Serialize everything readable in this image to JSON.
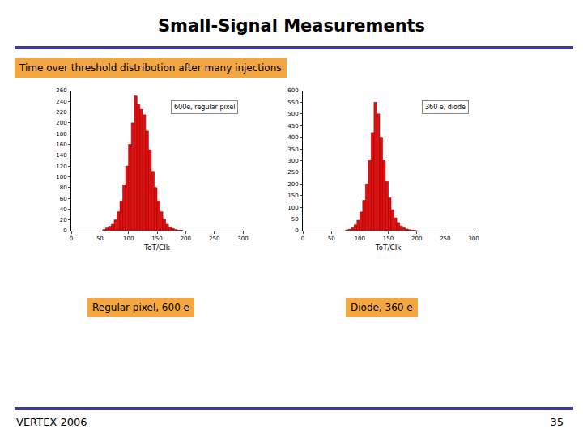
{
  "slide": {
    "title": "Small-Signal Measurements",
    "heading_box": "Time over threshold distribution after many injections",
    "captions": [
      "Regular pixel, 600 e",
      "Diode, 360 e"
    ],
    "footer": "VERTEX 2006",
    "page": "35"
  },
  "chart_data": [
    {
      "type": "histogram",
      "x_label": "ToT/Clk",
      "bins": [
        55,
        60,
        65,
        70,
        75,
        80,
        85,
        90,
        95,
        100,
        105,
        110,
        115,
        120,
        125,
        130,
        135,
        140,
        145,
        150,
        155,
        160,
        165,
        170,
        175,
        180,
        185,
        190,
        195
      ],
      "series": [
        {
          "name": "600e, regular pixel",
          "color": "#e41010",
          "values": [
            2,
            5,
            8,
            12,
            20,
            35,
            55,
            85,
            120,
            160,
            200,
            250,
            235,
            225,
            215,
            185,
            150,
            110,
            80,
            55,
            35,
            22,
            12,
            7,
            4,
            2,
            1,
            1
          ]
        }
      ],
      "xlim": [
        0,
        300
      ],
      "xticks": [
        0,
        50,
        100,
        150,
        200,
        250,
        300
      ],
      "ylim": [
        0,
        260
      ],
      "yticks": [
        0,
        20,
        40,
        60,
        80,
        100,
        120,
        140,
        160,
        180,
        200,
        220,
        240,
        260
      ],
      "grid": false
    },
    {
      "type": "histogram",
      "x_label": "ToT/Clk",
      "bins": [
        75,
        80,
        85,
        90,
        95,
        100,
        105,
        110,
        115,
        120,
        125,
        130,
        135,
        140,
        145,
        150,
        155,
        160,
        165,
        170,
        175,
        180,
        185,
        190,
        195,
        200
      ],
      "series": [
        {
          "name": "360 e, diode",
          "color": "#e41010",
          "values": [
            3,
            6,
            12,
            25,
            45,
            80,
            130,
            200,
            300,
            420,
            550,
            500,
            400,
            300,
            210,
            140,
            90,
            55,
            35,
            20,
            12,
            7,
            4,
            2,
            1
          ]
        }
      ],
      "xlim": [
        0,
        300
      ],
      "xticks": [
        0,
        50,
        100,
        150,
        200,
        250,
        300
      ],
      "ylim": [
        0,
        600
      ],
      "yticks": [
        0,
        50,
        100,
        150,
        200,
        250,
        300,
        350,
        400,
        450,
        500,
        550,
        600
      ],
      "grid": false
    }
  ]
}
